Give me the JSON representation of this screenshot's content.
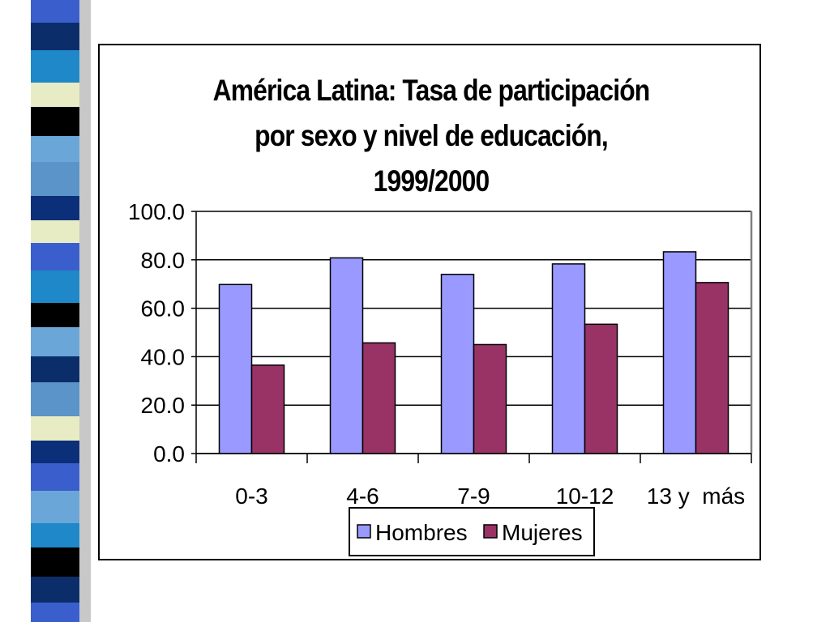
{
  "chart_data": {
    "type": "bar",
    "title_lines": [
      "América Latina: Tasa de participación",
      "por sexo y nivel de educación,",
      "1999/2000"
    ],
    "categories": [
      "0-3",
      "4-6",
      "7-9",
      "10-12",
      "13 y  más"
    ],
    "series": [
      {
        "name": "Hombres",
        "values": [
          69.8,
          80.8,
          74.0,
          78.3,
          83.3
        ],
        "color": "#9999ff"
      },
      {
        "name": "Mujeres",
        "values": [
          36.5,
          45.7,
          45.0,
          53.4,
          70.6
        ],
        "color": "#993366"
      }
    ],
    "y_ticks": [
      "0.0",
      "20.0",
      "40.0",
      "60.0",
      "80.0",
      "100.0"
    ],
    "ylim": [
      0,
      100
    ],
    "grid": true,
    "legend_position": "bottom-center"
  },
  "decor": {
    "strip_colors": [
      "#3a5fcd",
      "#0b2e6b",
      "#e8ecc4",
      "#000000",
      "#6aa6d8",
      "#1e88c8",
      "#5a94c8",
      "#0c2f7a"
    ]
  }
}
